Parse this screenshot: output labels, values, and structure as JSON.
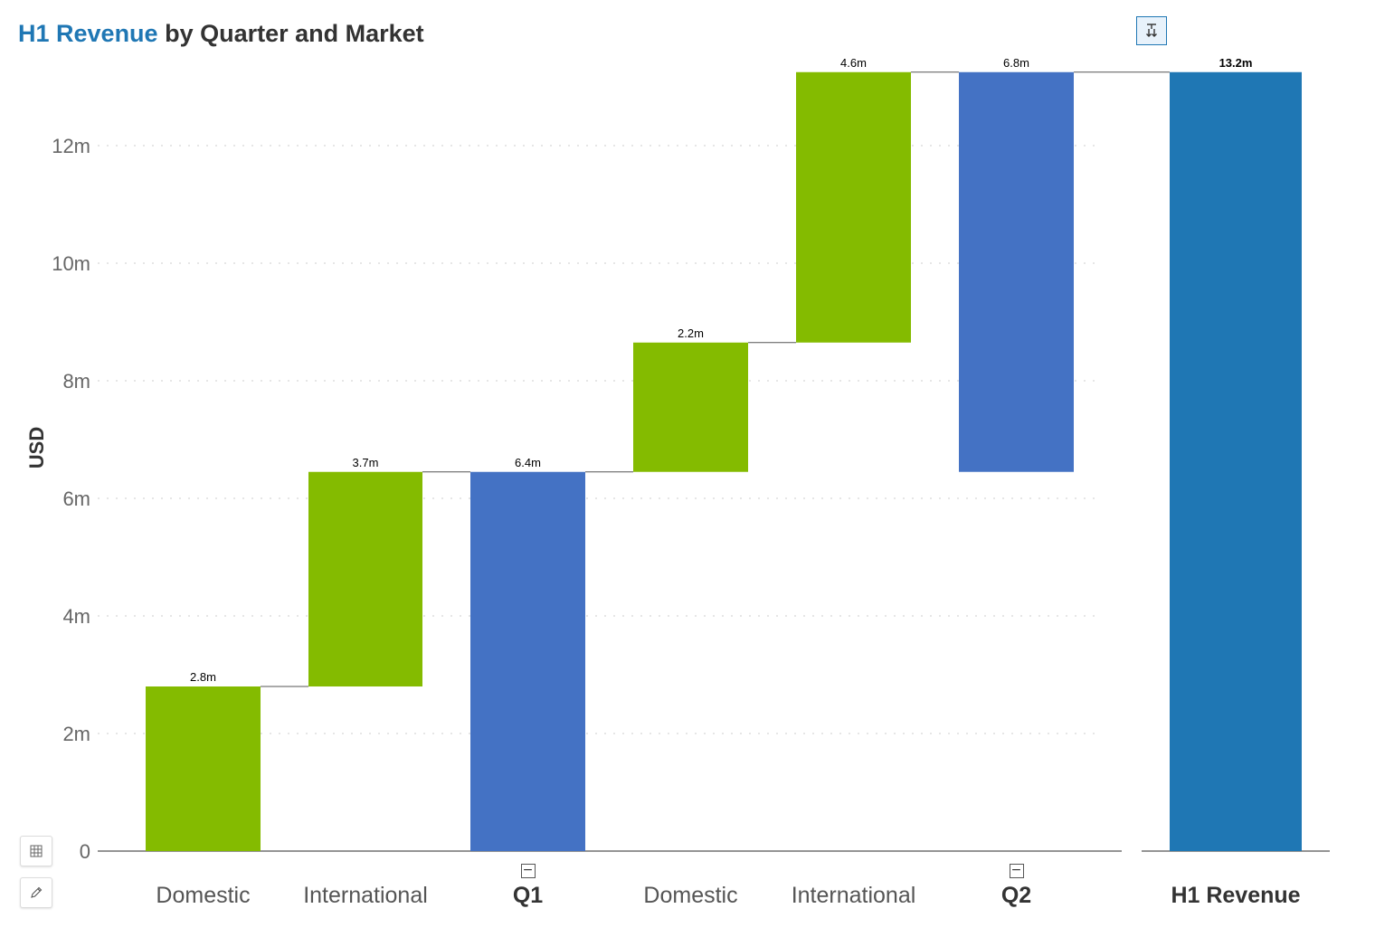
{
  "title": {
    "accent": "H1 Revenue",
    "rest": " by Quarter and Market"
  },
  "toolbar": {
    "sort_icon": "sort-descending-icon",
    "grid_icon": "table-grid-icon",
    "edit_icon": "pencil-icon",
    "collapse_symbol": "−"
  },
  "colors": {
    "increase": "#84bb00",
    "subtotal": "#4472c4",
    "total": "#1f77b4",
    "connector": "#555555",
    "axis": "#555555",
    "grid": "#dddddd"
  },
  "chart_data": {
    "type": "waterfall",
    "title": "H1 Revenue by Quarter and Market",
    "ylabel": "USD",
    "ylim": [
      0,
      13.2
    ],
    "y_ticks": [
      {
        "value": 0,
        "label": "0"
      },
      {
        "value": 2,
        "label": "2m"
      },
      {
        "value": 4,
        "label": "4m"
      },
      {
        "value": 6,
        "label": "6m"
      },
      {
        "value": 8,
        "label": "8m"
      },
      {
        "value": 10,
        "label": "10m"
      },
      {
        "value": 12,
        "label": "12m"
      }
    ],
    "grid": true,
    "bars": [
      {
        "category": "Domestic",
        "kind": "increase",
        "start": 0,
        "end": 2.8,
        "label": "2.8m"
      },
      {
        "category": "International",
        "kind": "increase",
        "start": 2.8,
        "end": 6.45,
        "label": "3.7m"
      },
      {
        "category": "Q1",
        "kind": "subtotal",
        "start": 0,
        "end": 6.45,
        "label": "6.4m",
        "collapsible": true
      },
      {
        "category": "Domestic",
        "kind": "increase",
        "start": 6.45,
        "end": 8.65,
        "label": "2.2m"
      },
      {
        "category": "International",
        "kind": "increase",
        "start": 8.65,
        "end": 13.25,
        "label": "4.6m"
      },
      {
        "category": "Q2",
        "kind": "subtotal",
        "start": 6.45,
        "end": 13.25,
        "label": "6.8m",
        "collapsible": true
      },
      {
        "category": "H1 Revenue",
        "kind": "total",
        "start": 0,
        "end": 13.25,
        "label": "13.2m"
      }
    ]
  }
}
